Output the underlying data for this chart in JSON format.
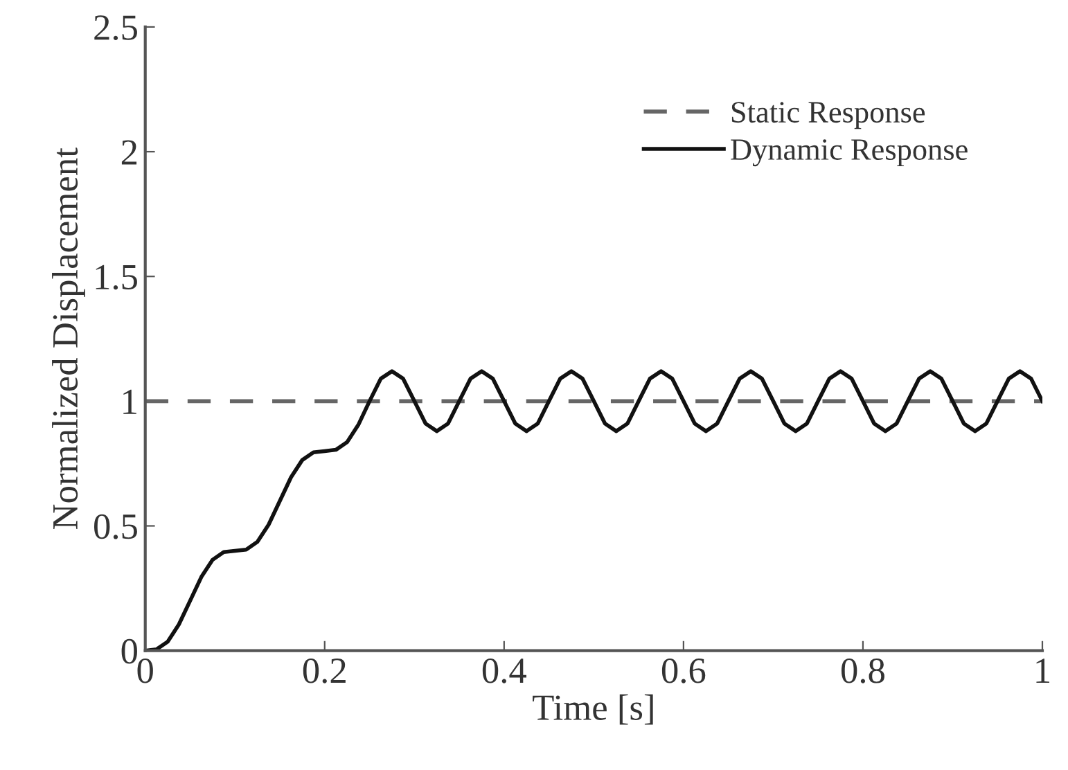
{
  "chart_data": {
    "type": "line",
    "xlabel": "Time [s]",
    "ylabel": "Normalized Displacement",
    "xlim": [
      0,
      1
    ],
    "ylim": [
      0,
      2.5
    ],
    "xticks": [
      0,
      0.2,
      0.4,
      0.6,
      0.8,
      1
    ],
    "yticks": [
      0,
      0.5,
      1,
      1.5,
      2,
      2.5
    ],
    "grid": false,
    "legend": "top right",
    "series": [
      {
        "name": "Static Response",
        "color": "#666666",
        "line_style": "dashed",
        "x": [
          0,
          1
        ],
        "values": [
          1,
          1
        ]
      },
      {
        "name": "Dynamic Response",
        "color": "#111111",
        "line_style": "solid",
        "x": [
          0,
          0.0125,
          0.025,
          0.0375,
          0.05,
          0.0625,
          0.075,
          0.0875,
          0.1,
          0.1125,
          0.125,
          0.1375,
          0.15,
          0.1625,
          0.175,
          0.1875,
          0.2,
          0.2125,
          0.225,
          0.2375,
          0.25,
          0.2625,
          0.275,
          0.2875,
          0.3,
          0.3125,
          0.325,
          0.3375,
          0.35,
          0.3625,
          0.375,
          0.3875,
          0.4,
          0.4125,
          0.425,
          0.4375,
          0.45,
          0.4625,
          0.475,
          0.4875,
          0.5,
          0.5125,
          0.525,
          0.5375,
          0.55,
          0.5625,
          0.575,
          0.5875,
          0.6,
          0.6125,
          0.625,
          0.6375,
          0.65,
          0.6625,
          0.675,
          0.6875,
          0.7,
          0.7125,
          0.725,
          0.7375,
          0.75,
          0.7625,
          0.775,
          0.7875,
          0.8,
          0.8125,
          0.825,
          0.8375,
          0.85,
          0.8625,
          0.875,
          0.8875,
          0.9,
          0.9125,
          0.925,
          0.9375,
          0.95,
          0.9625,
          0.975,
          0.9875,
          1
        ],
        "values": [
          0,
          0.005,
          0.036,
          0.105,
          0.2,
          0.295,
          0.364,
          0.395,
          0.4,
          0.405,
          0.436,
          0.505,
          0.6,
          0.695,
          0.764,
          0.795,
          0.8,
          0.805,
          0.836,
          0.905,
          1,
          1.09,
          1.12,
          1.09,
          1,
          0.91,
          0.88,
          0.91,
          1,
          1.09,
          1.12,
          1.09,
          1,
          0.91,
          0.88,
          0.91,
          1,
          1.09,
          1.12,
          1.09,
          1,
          0.91,
          0.88,
          0.91,
          1,
          1.09,
          1.12,
          1.09,
          1,
          0.91,
          0.88,
          0.91,
          1,
          1.09,
          1.12,
          1.09,
          1,
          0.91,
          0.88,
          0.91,
          1,
          1.09,
          1.12,
          1.09,
          1,
          0.91,
          0.88,
          0.91,
          1,
          1.09,
          1.12,
          1.09,
          1,
          0.91,
          0.88,
          0.91,
          1,
          1.09,
          1.12,
          1.09,
          1
        ]
      }
    ]
  }
}
